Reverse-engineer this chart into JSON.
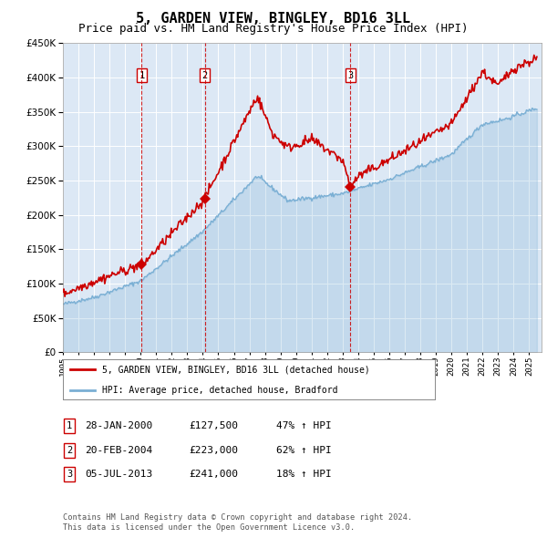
{
  "title": "5, GARDEN VIEW, BINGLEY, BD16 3LL",
  "subtitle": "Price paid vs. HM Land Registry's House Price Index (HPI)",
  "ylim": [
    0,
    450000
  ],
  "yticks": [
    0,
    50000,
    100000,
    150000,
    200000,
    250000,
    300000,
    350000,
    400000,
    450000
  ],
  "xlim_start": 1995.0,
  "xlim_end": 2025.8,
  "background_color": "#ffffff",
  "plot_bg_color": "#dce8f5",
  "grid_color": "#ffffff",
  "sales": [
    {
      "date": 2000.074,
      "price": 127500,
      "label": "1"
    },
    {
      "date": 2004.134,
      "price": 223000,
      "label": "2"
    },
    {
      "date": 2013.505,
      "price": 241000,
      "label": "3"
    }
  ],
  "legend_entries": [
    "5, GARDEN VIEW, BINGLEY, BD16 3LL (detached house)",
    "HPI: Average price, detached house, Bradford"
  ],
  "footnote": "Contains HM Land Registry data © Crown copyright and database right 2024.\nThis data is licensed under the Open Government Licence v3.0.",
  "table_rows": [
    {
      "num": "1",
      "date": "28-JAN-2000",
      "price": "£127,500",
      "hpi": "47% ↑ HPI"
    },
    {
      "num": "2",
      "date": "20-FEB-2004",
      "price": "£223,000",
      "hpi": "62% ↑ HPI"
    },
    {
      "num": "3",
      "date": "05-JUL-2013",
      "price": "£241,000",
      "hpi": "18% ↑ HPI"
    }
  ],
  "red_color": "#cc0000",
  "blue_color": "#7aafd4",
  "title_fontsize": 11,
  "subtitle_fontsize": 9
}
